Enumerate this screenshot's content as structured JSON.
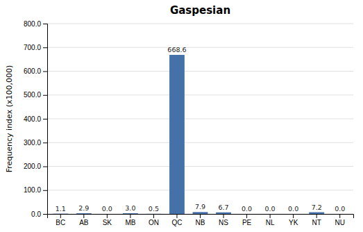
{
  "chart_data": {
    "type": "bar",
    "title": "Gaspesian",
    "categories": [
      "BC",
      "AB",
      "SK",
      "MB",
      "ON",
      "QC",
      "NB",
      "NS",
      "PE",
      "NL",
      "YK",
      "NT",
      "NU"
    ],
    "values": [
      1.1,
      2.9,
      0.0,
      3.0,
      0.5,
      668.6,
      7.9,
      6.7,
      0.0,
      0.0,
      0.0,
      7.2,
      0.0
    ],
    "value_labels": [
      "1.1",
      "2.9",
      "0.0",
      "3.0",
      "0.5",
      "668.6",
      "7.9",
      "6.7",
      "0.0",
      "0.0",
      "0.0",
      "7.2",
      "0.0"
    ],
    "data_labels": true,
    "color": "#4472a8",
    "ylabel": "Frequency index (x100,000)",
    "ylim": [
      0,
      800
    ],
    "yticks": [
      {
        "value": 0,
        "label": "0.0"
      },
      {
        "value": 100,
        "label": "100.0"
      },
      {
        "value": 200,
        "label": "200.0"
      },
      {
        "value": 300,
        "label": "300.0"
      },
      {
        "value": 400,
        "label": "400.0"
      },
      {
        "value": 500,
        "label": "500.0"
      },
      {
        "value": 600,
        "label": "600.0"
      },
      {
        "value": 700,
        "label": "700.0"
      },
      {
        "value": 800,
        "label": "800.0"
      }
    ],
    "grid": true
  }
}
